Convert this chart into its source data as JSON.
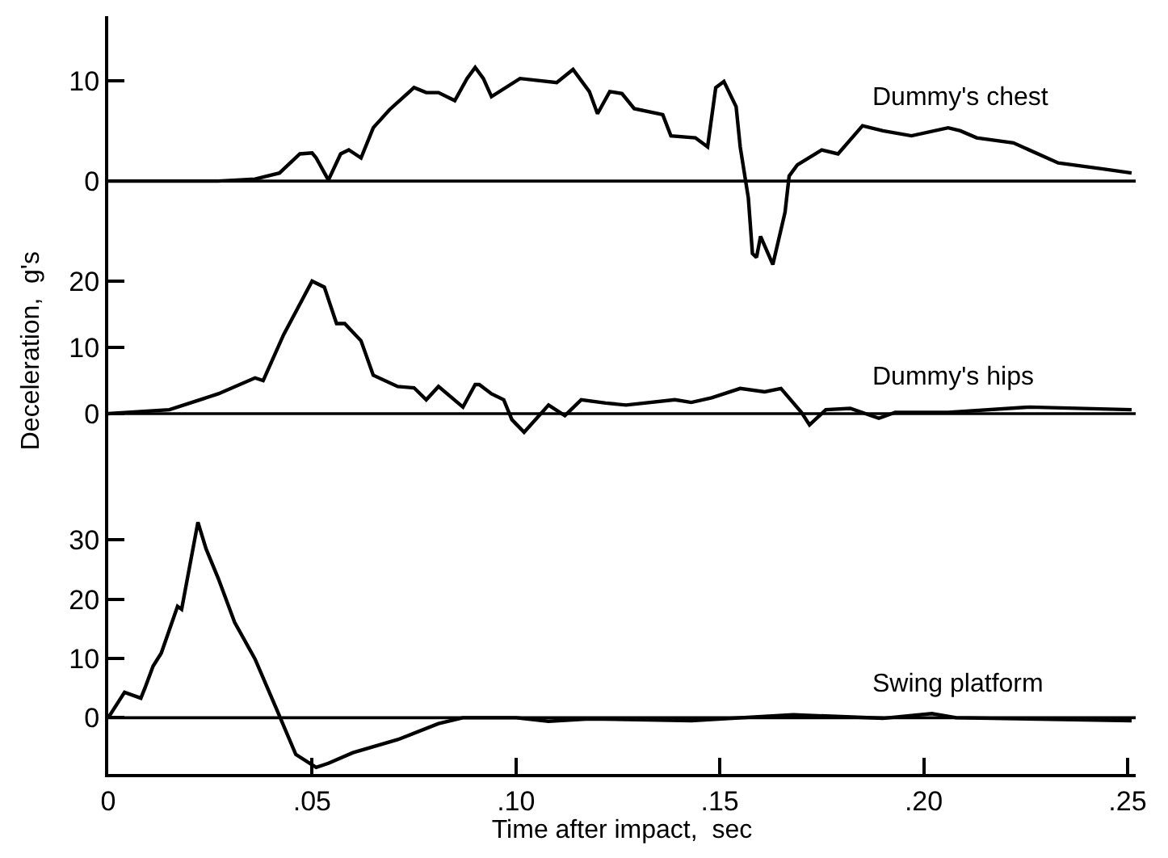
{
  "chart_data": [
    {
      "type": "line",
      "xlim": [
        0,
        0.252
      ],
      "ylim": [
        -9,
        16.4
      ],
      "yticks": [
        0,
        10
      ],
      "tick_labels": "y",
      "marker": "none",
      "line_style": "solid",
      "x": [
        0,
        0.027,
        0.036,
        0.042,
        0.047,
        0.05,
        0.051,
        0.054,
        0.057,
        0.059,
        0.062,
        0.065,
        0.069,
        0.075,
        0.078,
        0.081,
        0.085,
        0.088,
        0.09,
        0.092,
        0.094,
        0.101,
        0.11,
        0.114,
        0.118,
        0.12,
        0.123,
        0.126,
        0.129,
        0.136,
        0.138,
        0.144,
        0.147,
        0.149,
        0.151,
        0.154,
        0.155,
        0.157,
        0.158,
        0.159,
        0.16,
        0.163,
        0.166,
        0.167,
        0.169,
        0.175,
        0.179,
        0.185,
        0.19,
        0.197,
        0.206,
        0.209,
        0.213,
        0.222,
        0.233,
        0.244,
        0.251
      ],
      "series": [
        {
          "name": "Dummy's chest",
          "color": "#000000",
          "values": [
            0,
            0,
            0.2,
            0.8,
            2.7,
            2.8,
            2.3,
            0.1,
            2.7,
            3.1,
            2.3,
            5.3,
            7.1,
            9.3,
            8.8,
            8.8,
            8.0,
            10.2,
            11.3,
            10.2,
            8.4,
            10.2,
            9.8,
            11.1,
            8.9,
            6.7,
            8.9,
            8.7,
            7.2,
            6.6,
            4.5,
            4.3,
            3.4,
            9.3,
            9.9,
            7.4,
            3.4,
            -1.7,
            -7.2,
            -7.6,
            -5.5,
            -8.3,
            -3.1,
            0.5,
            1.6,
            3.1,
            2.7,
            5.5,
            5.0,
            4.5,
            5.3,
            5.0,
            4.3,
            3.8,
            1.8,
            1.2,
            0.8
          ]
        }
      ],
      "ref_lines": [
        {
          "axis": "y",
          "value": 0,
          "color": "#000000"
        }
      ]
    },
    {
      "type": "line",
      "xlim": [
        0,
        0.252
      ],
      "ylim": [
        -6,
        25
      ],
      "yticks": [
        0,
        10,
        20
      ],
      "tick_labels": "y",
      "marker": "none",
      "line_style": "solid",
      "ylabel": "Deceleration,  g's",
      "x": [
        0,
        0.015,
        0.027,
        0.036,
        0.038,
        0.043,
        0.05,
        0.053,
        0.056,
        0.058,
        0.062,
        0.065,
        0.071,
        0.075,
        0.078,
        0.081,
        0.087,
        0.09,
        0.091,
        0.094,
        0.097,
        0.099,
        0.102,
        0.108,
        0.112,
        0.116,
        0.122,
        0.127,
        0.139,
        0.143,
        0.148,
        0.155,
        0.161,
        0.165,
        0.17,
        0.172,
        0.176,
        0.182,
        0.189,
        0.193,
        0.206,
        0.226,
        0.251
      ],
      "series": [
        {
          "name": "Dummy's hips",
          "color": "#000000",
          "values": [
            0,
            0.6,
            3.0,
            5.4,
            5.0,
            11.9,
            20.0,
            19.1,
            13.6,
            13.6,
            11.0,
            5.8,
            4.1,
            3.9,
            2.1,
            4.1,
            1.0,
            4.4,
            4.4,
            3.0,
            2.1,
            -0.9,
            -2.8,
            1.3,
            -0.3,
            2.1,
            1.6,
            1.3,
            2.1,
            1.7,
            2.4,
            3.8,
            3.3,
            3.8,
            0.2,
            -1.7,
            0.6,
            0.8,
            -0.7,
            0.2,
            0.2,
            1.0,
            0.6
          ]
        }
      ],
      "ref_lines": [
        {
          "axis": "y",
          "value": 0,
          "color": "#000000"
        }
      ]
    },
    {
      "type": "line",
      "xlim": [
        0,
        0.252
      ],
      "ylim": [
        -9.5,
        45
      ],
      "yticks": [
        0,
        10,
        20,
        30
      ],
      "xticks": [
        0,
        {
          "value": 0.05,
          "label": ".05"
        },
        {
          "value": 0.1,
          "label": ".10"
        },
        {
          "value": 0.15,
          "label": ".15"
        },
        {
          "value": 0.2,
          "label": ".20"
        },
        {
          "value": 0.25,
          "label": ".25"
        }
      ],
      "marker": "none",
      "line_style": "solid",
      "xlabel": "Time after impact,  sec",
      "x": [
        0,
        0.004,
        0.008,
        0.009,
        0.011,
        0.013,
        0.017,
        0.018,
        0.022,
        0.024,
        0.027,
        0.031,
        0.036,
        0.041,
        0.046,
        0.051,
        0.054,
        0.06,
        0.071,
        0.081,
        0.087,
        0.1,
        0.108,
        0.118,
        0.143,
        0.168,
        0.19,
        0.202,
        0.208,
        0.251
      ],
      "series": [
        {
          "name": "Swing platform",
          "color": "#000000",
          "values": [
            0,
            4.3,
            3.3,
            5.0,
            8.7,
            10.9,
            18.8,
            18.3,
            33.0,
            28.5,
            23.5,
            16.1,
            9.9,
            1.9,
            -6.2,
            -8.4,
            -7.7,
            -5.9,
            -3.7,
            -1.0,
            0,
            0,
            -0.6,
            -0.2,
            -0.5,
            0.5,
            -0.1,
            0.7,
            0,
            -0.5
          ]
        }
      ],
      "ref_lines": [
        {
          "axis": "y",
          "value": 0,
          "color": "#000000"
        }
      ]
    }
  ]
}
